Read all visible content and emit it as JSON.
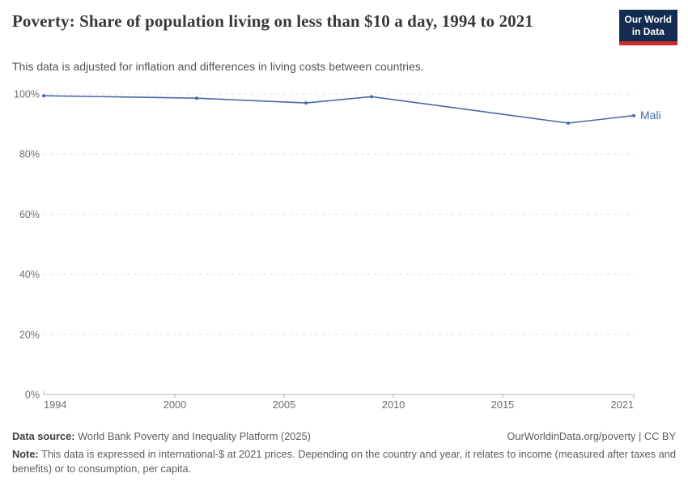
{
  "header": {
    "title": "Poverty: Share of population living on less than $10 a day, 1994 to 2021",
    "subtitle": "This data is adjusted for inflation and differences in living costs between countries.",
    "logo": {
      "line1": "Our World",
      "line2": "in Data",
      "bg_color": "#132c4f",
      "accent_color": "#cb2d2f"
    }
  },
  "chart_data": {
    "type": "line",
    "title": "Poverty: Share of population living on less than $10 a day, 1994 to 2021",
    "x": [
      1994,
      2001,
      2006,
      2009,
      2018,
      2021
    ],
    "series": [
      {
        "name": "Mali",
        "color": "#4a68a8",
        "values": [
          99.4,
          98.6,
          97.0,
          99.1,
          90.3,
          92.8
        ]
      }
    ],
    "xlabel": "",
    "ylabel": "",
    "xlim": [
      1994,
      2021
    ],
    "ylim": [
      0,
      100
    ],
    "x_ticks": [
      1994,
      2000,
      2005,
      2010,
      2015,
      2021
    ],
    "y_ticks": [
      0,
      20,
      40,
      60,
      80,
      100
    ],
    "y_tick_suffix": "%",
    "grid": "horizontal-dashed",
    "legend_position": "end-of-line-label"
  },
  "footer": {
    "datasource_label": "Data source:",
    "datasource_text": " World Bank Poverty and Inequality Platform (2025)",
    "license_text": "OurWorldinData.org/poverty | CC BY",
    "note_label": "Note:",
    "note_text": " This data is expressed in international-$ at 2021 prices. Depending on the country and year, it relates to income (measured after taxes and benefits) or to consumption, per capita."
  }
}
